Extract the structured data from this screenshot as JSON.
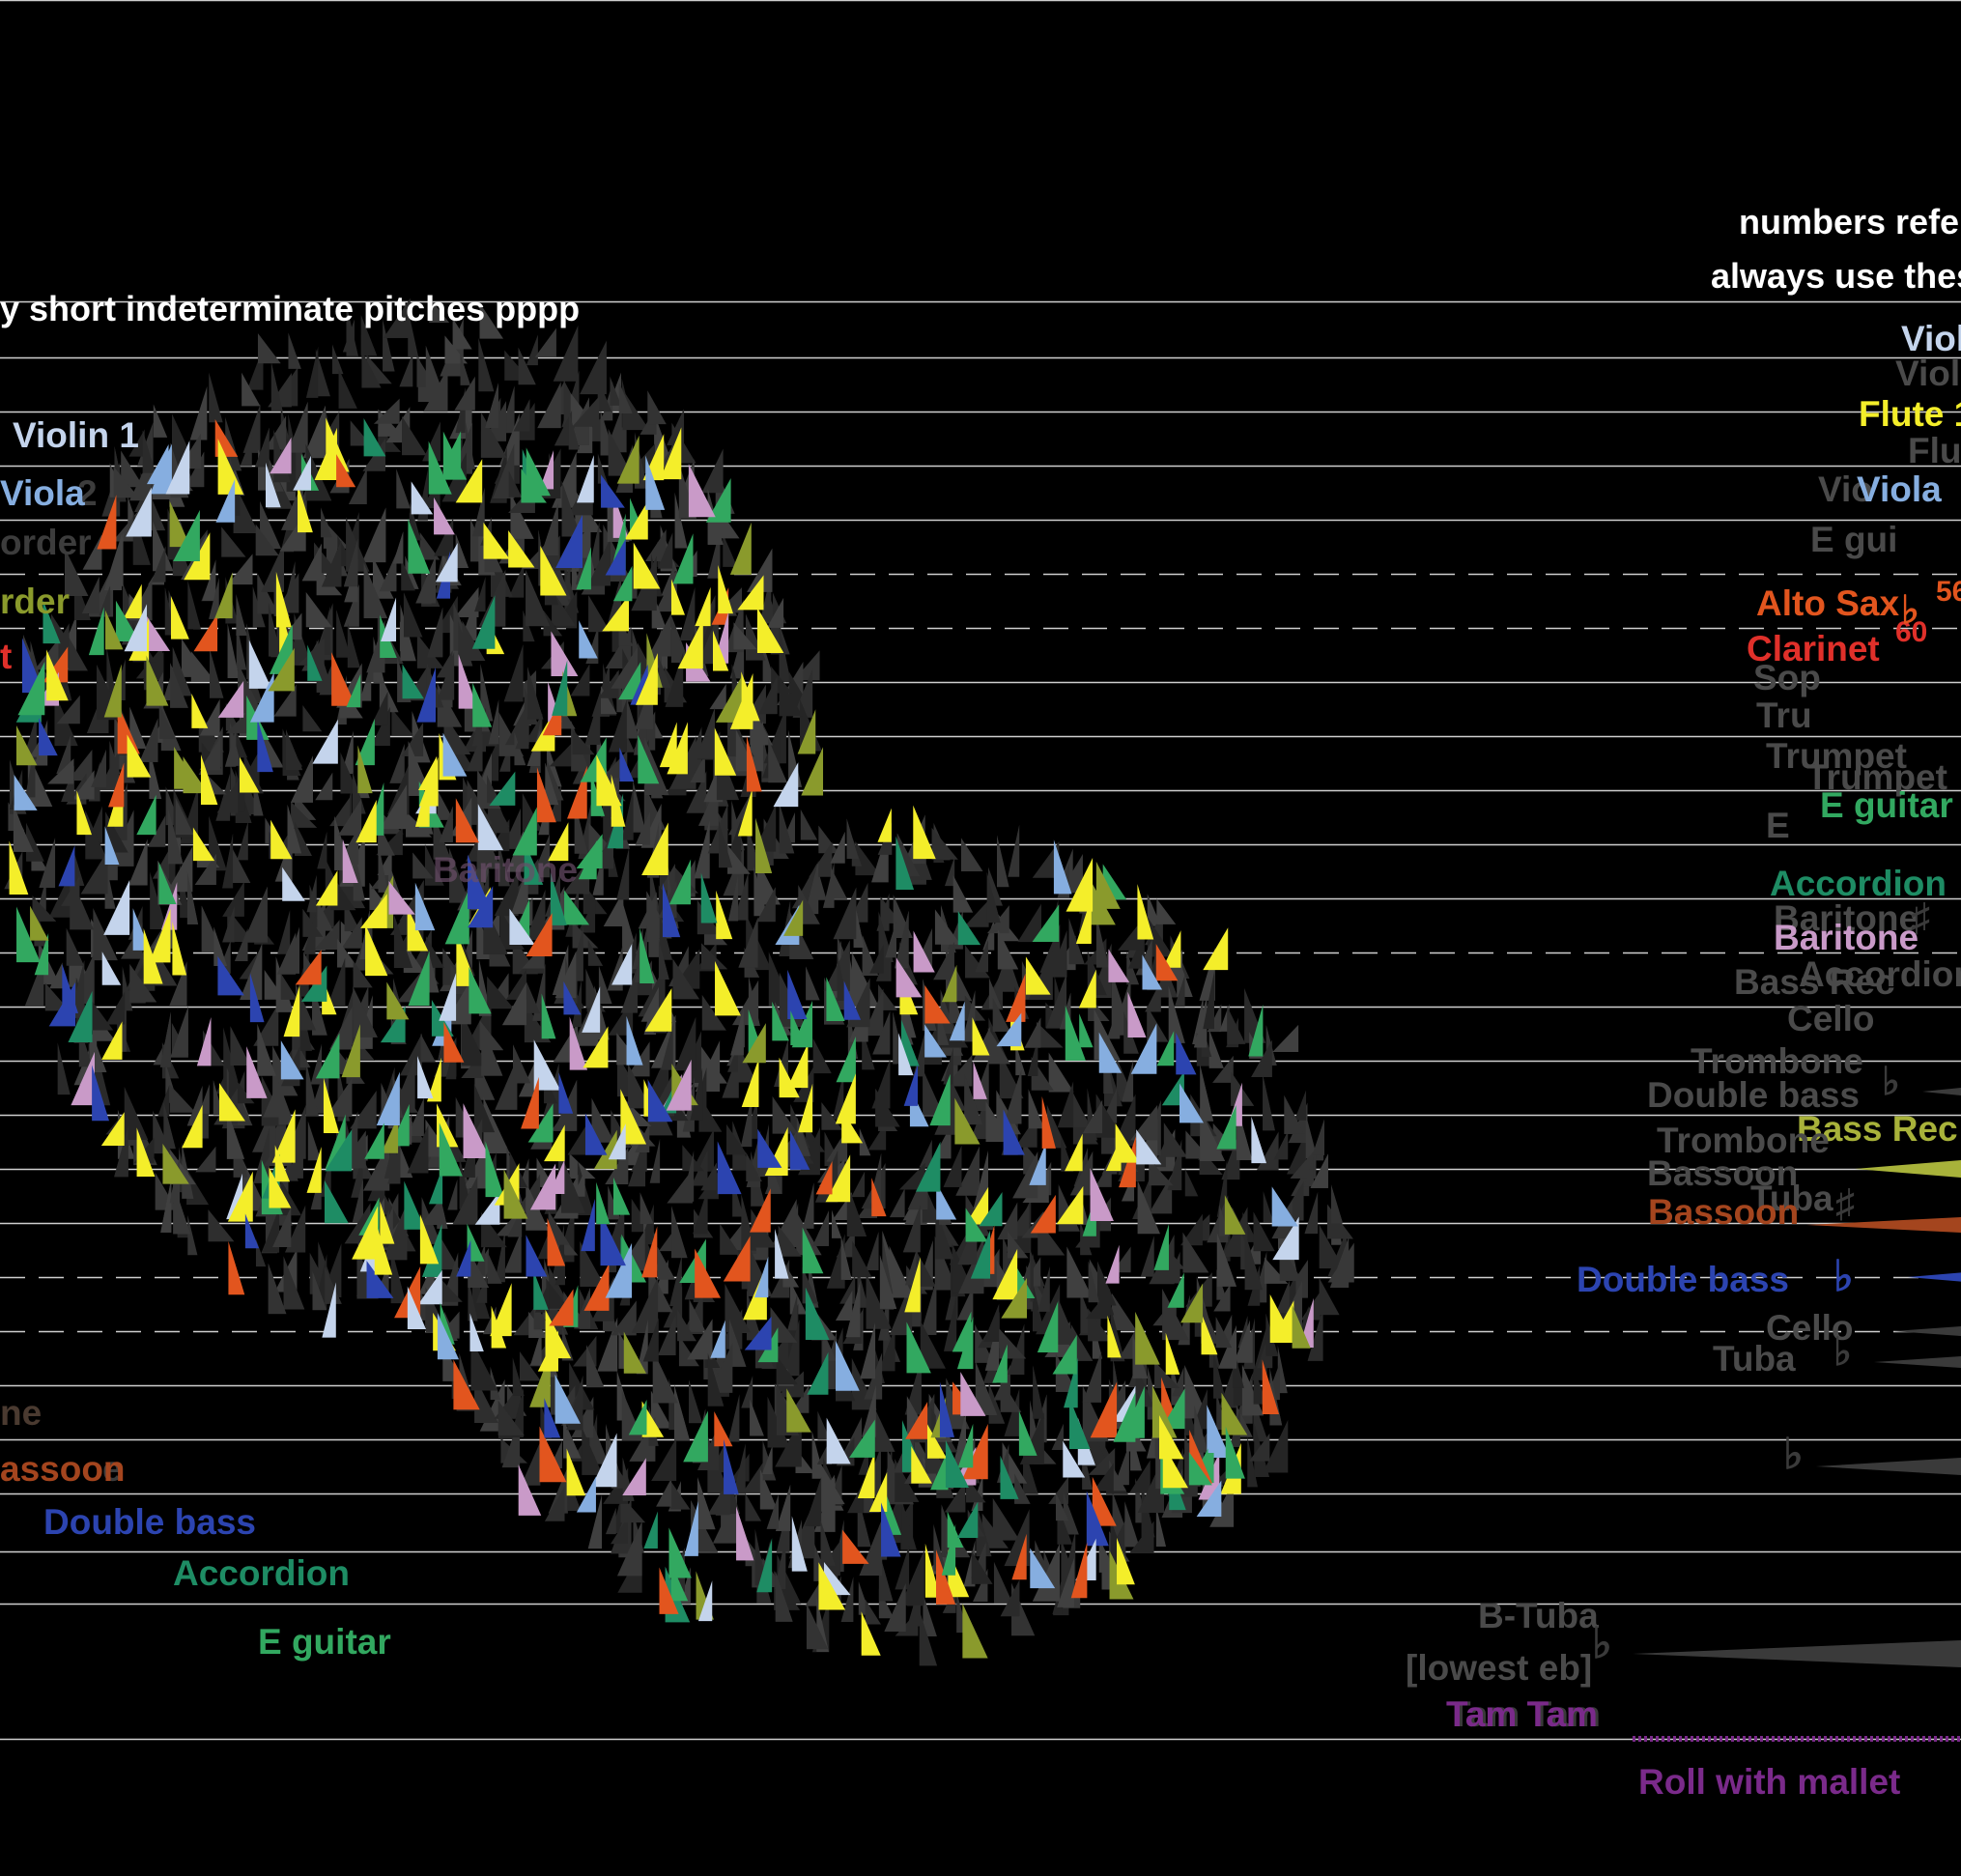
{
  "colors": {
    "background": "#000000",
    "staff_line": "#cfcfcf",
    "cluster_grey": "#2e2e2e",
    "violin": "#c4d4ec",
    "viola": "#86aee0",
    "flute": "#f4ee2a",
    "recorder": "#8a9a2c",
    "alto_sax": "#e2551e",
    "clarinet": "#e0302a",
    "green": "#32a860",
    "accordion": "#1e8c64",
    "baritone": "#c99ac8",
    "bassoon": "#a4451e",
    "double_bass": "#2c44b0",
    "tam_tam": "#7a2a8a",
    "bass_rec": "#a8b23a"
  },
  "header": {
    "left_instruction": "y short indeterminate pitches pppp",
    "right_line_1": "numbers refer",
    "right_line_2": "always use thes"
  },
  "left_labels": {
    "violin1": "Violin 1",
    "viola": "Viola",
    "viola_ghost_2": "2",
    "recorder_ghost": "order",
    "recorder": "rder",
    "clarinet": "t",
    "baritone_ghost": "Baritone",
    "ne_ghost": "ne",
    "bassoon": "assoon",
    "bassoon_ghost_e": "e",
    "double_bass": "Double bass",
    "accordion": "Accordion",
    "e_guitar": "E guitar"
  },
  "right_labels": {
    "violin_top": "Viol",
    "violin_top_ghost": "Viol",
    "flute1": "Flute 1",
    "flute_ghost": "Flu",
    "viola_ghost": "Vio",
    "viola": "Viola",
    "e_guitar_ghost": "E gui",
    "alto_sax": "Alto Sax",
    "num_56": "56",
    "num_60": "60",
    "clarinet": "Clarinet",
    "sop_ghost": "Sop",
    "trumpet_ghost_1": "Tru",
    "trumpet_ghost_2": "Trumpet",
    "trumpet_ghost_3": "Trumpet",
    "e_guitar": "E guitar",
    "e_guitar_ghost2": "E",
    "accordion": "Accordion",
    "baritone_ghost": "Baritone",
    "baritone": "Baritone",
    "accordion_ghost": "Accordion",
    "bass_rec_ghost": "Bass Rec",
    "cello_ghost": "Cello",
    "trombone_ghost": "Trombone",
    "double_bass_ghost": "Double bass",
    "bass_rec": "Bass Rec",
    "trombone_ghost2": "Trombone",
    "bassoon_ghost": "Bassoon",
    "tuba_ghost": "Tuba",
    "bassoon": "Bassoon",
    "double_bass": "Double bass",
    "cello": "Cello",
    "tuba": "Tuba",
    "b_tuba": "B-Tuba",
    "lowest_eb": "[lowest eb]",
    "tam_tam_ghost": "Tam Tam",
    "tam_tam": "Tam Tam",
    "roll": "Roll with mallet"
  },
  "glyphs": {
    "flat": "♭",
    "sharp": "♯"
  }
}
